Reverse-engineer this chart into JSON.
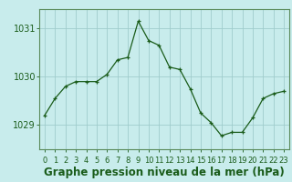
{
  "x": [
    0,
    1,
    2,
    3,
    4,
    5,
    6,
    7,
    8,
    9,
    10,
    11,
    12,
    13,
    14,
    15,
    16,
    17,
    18,
    19,
    20,
    21,
    22,
    23
  ],
  "y": [
    1029.2,
    1029.55,
    1029.8,
    1029.9,
    1029.9,
    1029.9,
    1030.05,
    1030.35,
    1030.4,
    1031.15,
    1030.75,
    1030.65,
    1030.2,
    1030.15,
    1029.75,
    1029.25,
    1029.05,
    1028.78,
    1028.85,
    1028.85,
    1029.15,
    1029.55,
    1029.65,
    1029.7
  ],
  "line_color": "#1a5c1a",
  "marker": "+",
  "marker_size": 4,
  "bg_color": "#c8ecec",
  "grid_color": "#a0cccc",
  "title": "Graphe pression niveau de la mer (hPa)",
  "xlabel_ticks": [
    "0",
    "1",
    "2",
    "3",
    "4",
    "5",
    "6",
    "7",
    "8",
    "9",
    "10",
    "11",
    "12",
    "13",
    "14",
    "15",
    "16",
    "17",
    "18",
    "19",
    "20",
    "21",
    "22",
    "23"
  ],
  "yticks": [
    1029,
    1030,
    1031
  ],
  "ylim": [
    1028.5,
    1031.4
  ],
  "xlim": [
    -0.5,
    23.5
  ],
  "title_fontsize": 8.5,
  "tick_fontsize": 7,
  "xtick_fontsize": 6,
  "label_color": "#1a5c1a",
  "border_color": "#5a8a5a"
}
